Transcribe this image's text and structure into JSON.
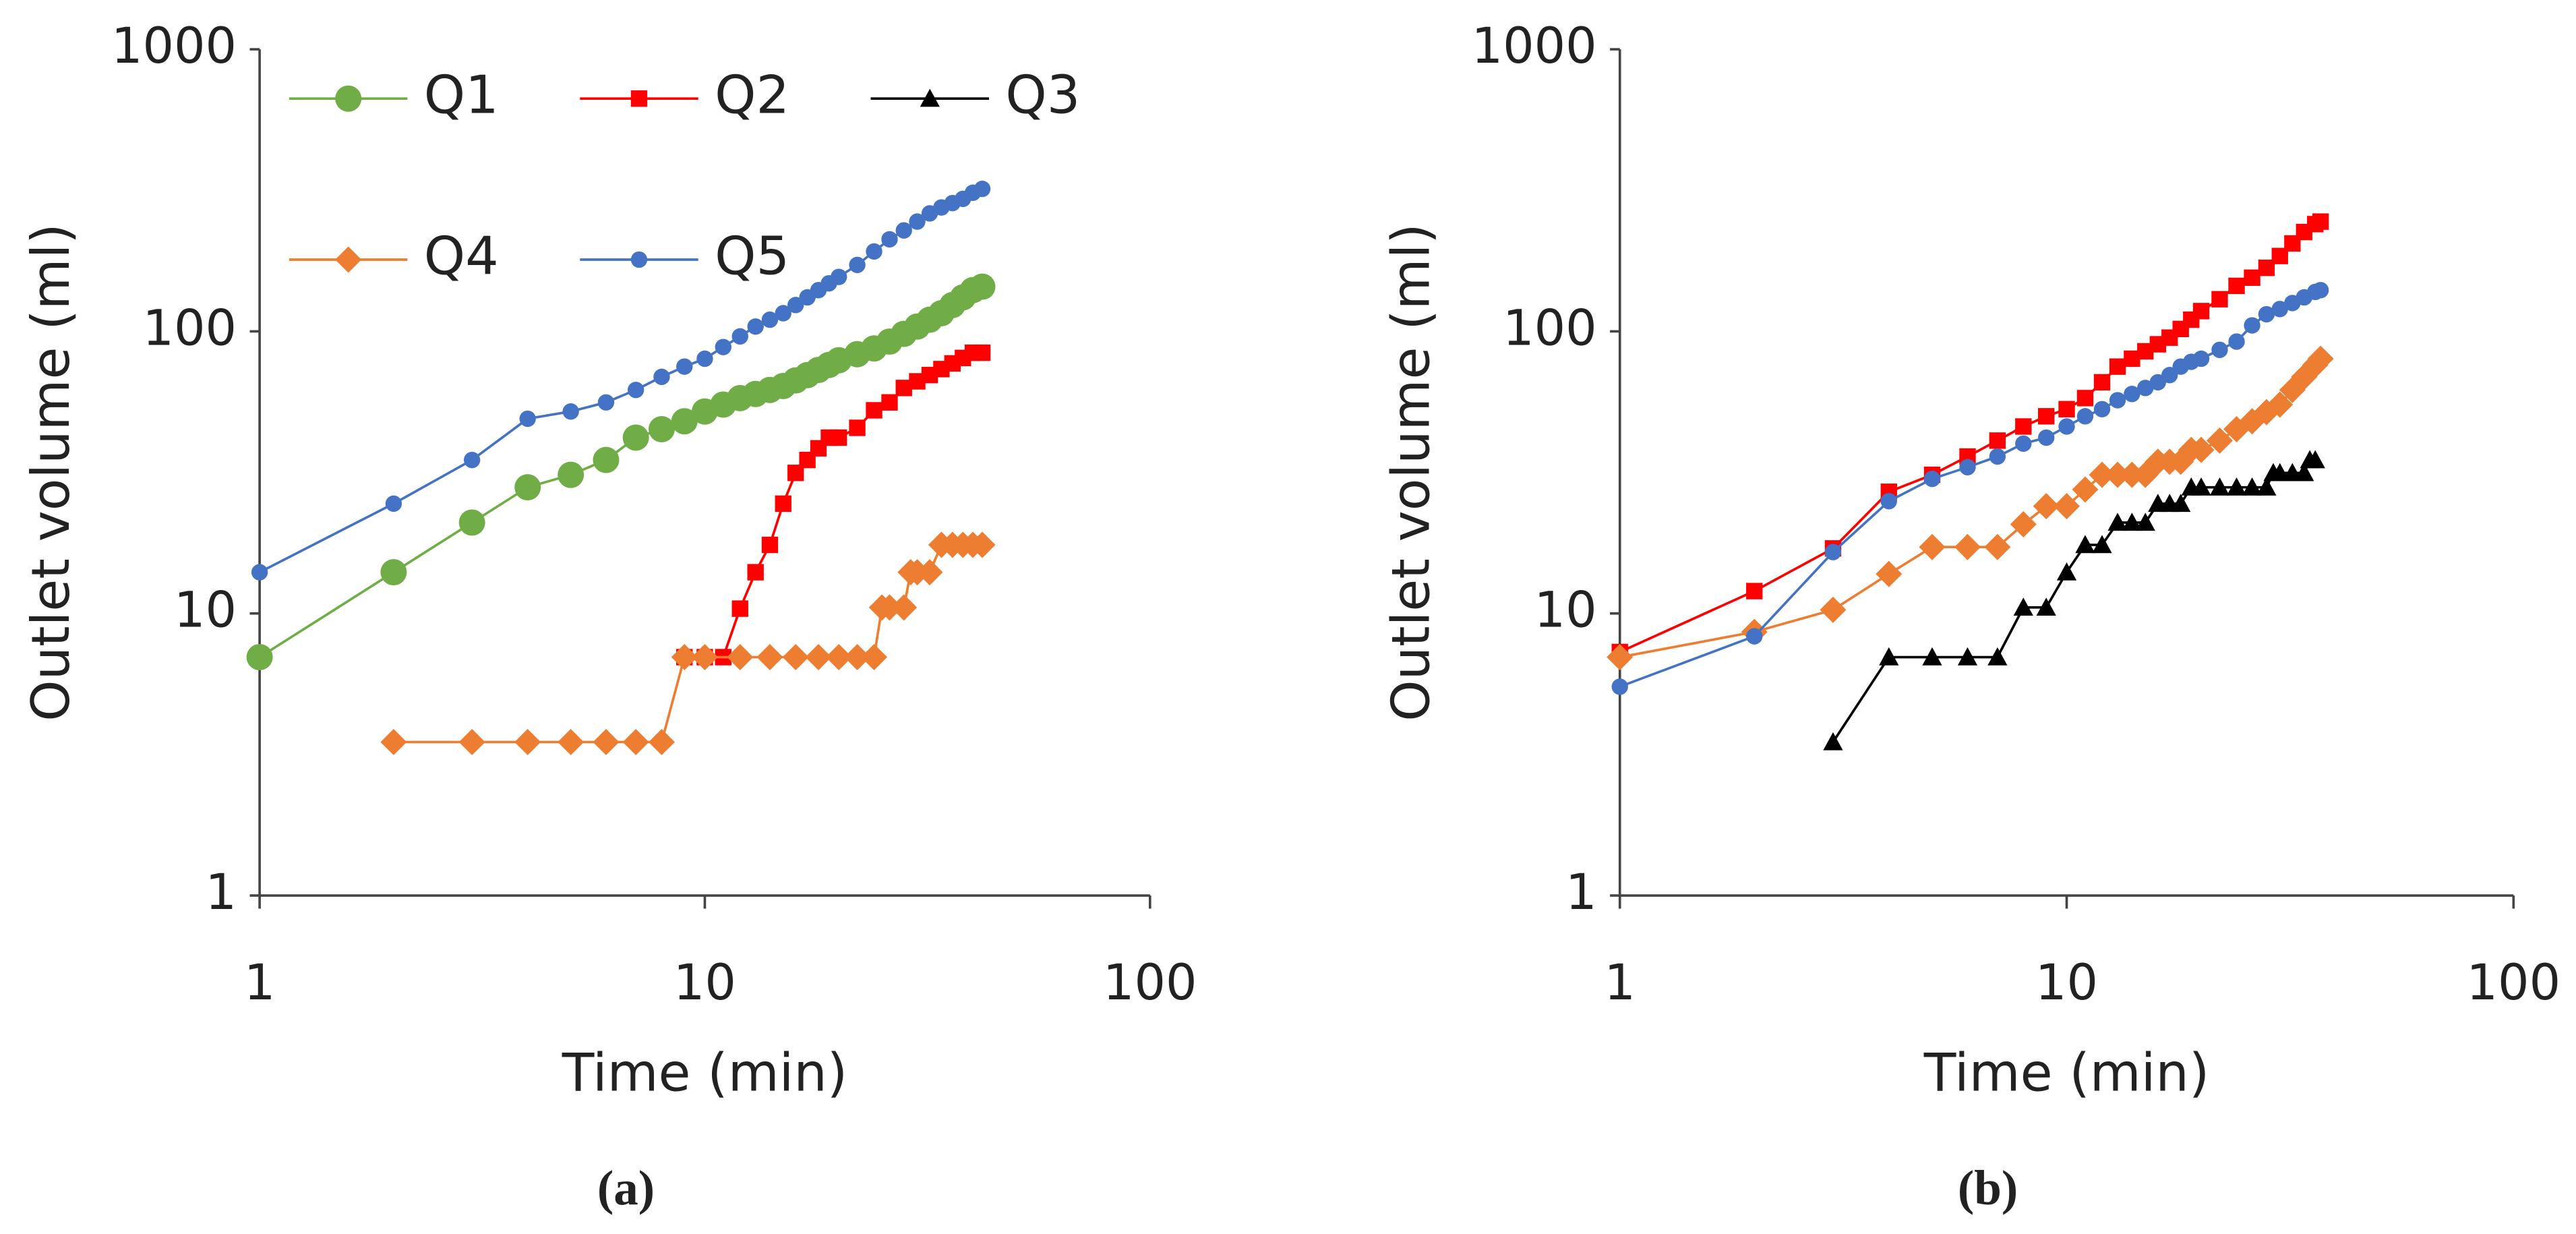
{
  "chart_data": [
    {
      "type": "line",
      "caption": "(a)",
      "xlabel": "Time (min)",
      "ylabel": "Outlet volume  (ml)",
      "xscale": "log",
      "yscale": "log",
      "xlim": [
        1,
        100
      ],
      "ylim": [
        1,
        1000
      ],
      "xticks": [
        1,
        10,
        100
      ],
      "yticks": [
        1,
        10,
        100,
        1000
      ],
      "legend": true,
      "legend_position": "upper left",
      "series": [
        {
          "name": "Q1",
          "color": "#70ad47",
          "marker": "circle",
          "x": [
            1,
            2,
            3,
            4,
            5,
            6,
            7,
            8,
            9,
            10,
            11,
            12,
            13,
            14,
            15,
            16,
            17,
            18,
            19,
            20,
            22,
            24,
            26,
            28,
            30,
            32,
            34,
            36,
            38,
            40,
            42
          ],
          "values": [
            7,
            14,
            21,
            28,
            31,
            35,
            42,
            45,
            48,
            52,
            55,
            58,
            60,
            62,
            64,
            67,
            70,
            73,
            76,
            79,
            83,
            87,
            92,
            98,
            104,
            110,
            116,
            124,
            132,
            140,
            144
          ]
        },
        {
          "name": "Q2",
          "color": "#ff0000",
          "marker": "square",
          "x": [
            9,
            10,
            11,
            12,
            13,
            14,
            15,
            16,
            17,
            18,
            19,
            20,
            22,
            24,
            26,
            28,
            30,
            32,
            34,
            36,
            38,
            40,
            42
          ],
          "values": [
            7,
            7,
            7,
            10.4,
            14,
            17.5,
            24.5,
            31.5,
            35,
            38.5,
            42,
            42,
            45.5,
            52.5,
            56,
            63,
            66.5,
            70,
            73.5,
            77,
            80.5,
            84,
            84
          ]
        },
        {
          "name": "Q3",
          "color": "#000000",
          "marker": "triangle",
          "x": [],
          "values": []
        },
        {
          "name": "Q4",
          "color": "#ed7d31",
          "marker": "diamond",
          "x": [
            2,
            3,
            4,
            5,
            6,
            7,
            8,
            9,
            10,
            12,
            14,
            16,
            18,
            20,
            22,
            24,
            25,
            26,
            28,
            29,
            30,
            32,
            34,
            36,
            38,
            40,
            42
          ],
          "values": [
            3.5,
            3.5,
            3.5,
            3.5,
            3.5,
            3.5,
            3.5,
            7,
            7,
            7,
            7,
            7,
            7,
            7,
            7,
            7,
            10.5,
            10.5,
            10.5,
            14,
            14,
            14,
            17.5,
            17.5,
            17.5,
            17.5,
            17.5
          ]
        },
        {
          "name": "Q5",
          "color": "#4472c4",
          "marker": "dot",
          "x": [
            1,
            2,
            3,
            4,
            5,
            6,
            7,
            8,
            9,
            10,
            11,
            12,
            13,
            14,
            15,
            16,
            17,
            18,
            19,
            20,
            22,
            24,
            26,
            28,
            30,
            32,
            34,
            36,
            38,
            40,
            42
          ],
          "values": [
            14,
            24.5,
            35,
            49,
            52,
            56,
            62,
            69,
            75,
            80,
            88,
            96,
            104,
            110,
            116,
            124,
            132,
            140,
            148,
            156,
            172,
            192,
            212,
            228,
            245,
            262,
            275,
            285,
            295,
            310,
            320
          ]
        }
      ]
    },
    {
      "type": "line",
      "caption": "(b)",
      "xlabel": "Time (min)",
      "ylabel": "Outlet volume (ml)",
      "xscale": "log",
      "yscale": "log",
      "xlim": [
        1,
        100
      ],
      "ylim": [
        1,
        1000
      ],
      "xticks": [
        1,
        10,
        100
      ],
      "yticks": [
        1,
        10,
        100,
        1000
      ],
      "legend": false,
      "series": [
        {
          "name": "Q2",
          "color": "#ff0000",
          "marker": "square",
          "x": [
            1,
            2,
            3,
            4,
            5,
            6,
            7,
            8,
            9,
            10,
            11,
            12,
            13,
            14,
            15,
            16,
            17,
            18,
            19,
            20,
            22,
            24,
            26,
            28,
            30,
            32,
            34,
            36,
            37
          ],
          "values": [
            7.3,
            12,
            17,
            27,
            31,
            36,
            41,
            46,
            50,
            53,
            58,
            66,
            75,
            80,
            85,
            90,
            95,
            102,
            110,
            118,
            130,
            145,
            155,
            168,
            185,
            205,
            225,
            240,
            245
          ]
        },
        {
          "name": "Q3",
          "color": "#000000",
          "marker": "triangle",
          "x": [
            3,
            4,
            5,
            6,
            7,
            8,
            9,
            10,
            11,
            12,
            13,
            14,
            15,
            16,
            17,
            18,
            19,
            20,
            22,
            24,
            26,
            28,
            29,
            30,
            32,
            34,
            35,
            36
          ],
          "values": [
            3.5,
            7,
            7,
            7,
            7,
            10.5,
            10.5,
            14,
            17.5,
            17.5,
            21,
            21,
            21,
            24.5,
            24.5,
            24.5,
            28,
            28,
            28,
            28,
            28,
            28,
            31.5,
            31.5,
            31.5,
            31.5,
            35,
            35
          ]
        },
        {
          "name": "Q4",
          "color": "#ed7d31",
          "marker": "diamond",
          "x": [
            1,
            2,
            3,
            4,
            5,
            6,
            7,
            8,
            9,
            10,
            11,
            12,
            13,
            14,
            15,
            16,
            17,
            18,
            19,
            20,
            22,
            24,
            26,
            28,
            30,
            32,
            34,
            36,
            37
          ],
          "values": [
            7,
            8.6,
            10.3,
            13.8,
            17.2,
            17.2,
            17.2,
            20.7,
            24,
            24,
            27.5,
            31,
            31,
            31,
            31,
            34.5,
            34.5,
            34.5,
            38,
            38,
            41,
            45,
            48,
            51.7,
            55,
            62,
            69,
            76,
            80
          ]
        },
        {
          "name": "Q5",
          "color": "#4472c4",
          "marker": "dot",
          "x": [
            1,
            2,
            3,
            4,
            5,
            6,
            7,
            8,
            9,
            10,
            11,
            12,
            13,
            14,
            15,
            16,
            17,
            18,
            19,
            20,
            22,
            24,
            26,
            28,
            30,
            32,
            34,
            36,
            37
          ],
          "values": [
            5.5,
            8.3,
            16.5,
            25,
            30,
            33,
            36,
            40,
            42,
            46,
            50,
            53,
            57,
            60,
            63,
            66,
            70,
            75,
            78,
            80,
            86,
            92,
            105,
            115,
            120,
            126,
            132,
            138,
            140
          ]
        }
      ]
    }
  ]
}
